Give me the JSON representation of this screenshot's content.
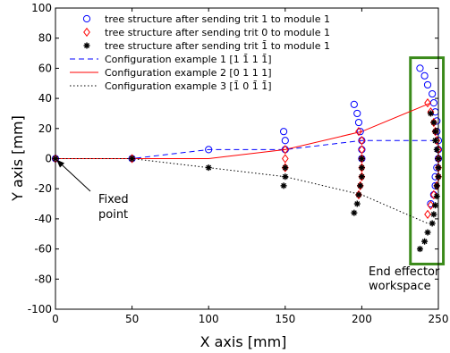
{
  "chart_data": {
    "type": "scatter",
    "xlabel": "X axis [mm]",
    "ylabel": "Y axis [mm]",
    "xlim": [
      0,
      250
    ],
    "ylim": [
      -100,
      100
    ],
    "xticks": [
      "0",
      "50",
      "100",
      "150",
      "200",
      "250"
    ],
    "yticks": [
      "100",
      "80",
      "60",
      "40",
      "20",
      "0",
      "-20",
      "-40",
      "-60",
      "-80",
      "-100"
    ],
    "grid": false,
    "legend_position": "top-left",
    "series": [
      {
        "name": "tree structure after sending trit 1 to module 1",
        "marker": "circle",
        "color": "#0000ff",
        "points": [
          [
            0,
            0
          ],
          [
            50,
            0
          ],
          [
            100,
            6
          ],
          [
            149,
            18
          ],
          [
            150,
            12
          ],
          [
            150,
            6
          ],
          [
            195,
            36
          ],
          [
            197,
            30
          ],
          [
            198,
            24
          ],
          [
            199,
            18
          ],
          [
            200,
            12
          ],
          [
            200,
            6
          ],
          [
            200,
            0
          ],
          [
            238,
            60
          ],
          [
            241,
            55
          ],
          [
            243,
            49
          ],
          [
            246,
            43
          ],
          [
            247,
            37
          ],
          [
            248,
            31
          ],
          [
            249,
            25
          ],
          [
            249,
            18
          ],
          [
            250,
            12
          ],
          [
            250,
            6
          ],
          [
            250,
            0
          ],
          [
            249,
            -6
          ],
          [
            248,
            -12
          ],
          [
            248,
            -18
          ],
          [
            247,
            -24
          ],
          [
            245,
            -30
          ]
        ]
      },
      {
        "name": "tree structure after sending trit 0 to module 1",
        "marker": "diamond",
        "color": "#ff0000",
        "points": [
          [
            0,
            0
          ],
          [
            50,
            0
          ],
          [
            150,
            6
          ],
          [
            150,
            0
          ],
          [
            150,
            -6
          ],
          [
            198,
            18
          ],
          [
            200,
            12
          ],
          [
            200,
            6
          ],
          [
            200,
            0
          ],
          [
            200,
            -6
          ],
          [
            200,
            -12
          ],
          [
            199,
            -18
          ],
          [
            198,
            -24
          ],
          [
            243,
            37
          ],
          [
            245,
            31
          ],
          [
            247,
            24
          ],
          [
            248,
            18
          ],
          [
            249,
            12
          ],
          [
            250,
            6
          ],
          [
            250,
            0
          ],
          [
            250,
            -6
          ],
          [
            250,
            -12
          ],
          [
            249,
            -18
          ],
          [
            247,
            -24
          ],
          [
            245,
            -31
          ],
          [
            243,
            -37
          ]
        ]
      },
      {
        "name": "tree structure after sending trit 1̄ to module 1",
        "marker": "star",
        "color": "#000000",
        "points": [
          [
            0,
            0
          ],
          [
            50,
            0
          ],
          [
            100,
            -6
          ],
          [
            149,
            -18
          ],
          [
            150,
            -12
          ],
          [
            150,
            -6
          ],
          [
            195,
            -36
          ],
          [
            197,
            -30
          ],
          [
            198,
            -24
          ],
          [
            199,
            -18
          ],
          [
            200,
            -12
          ],
          [
            200,
            -6
          ],
          [
            200,
            0
          ],
          [
            238,
            -60
          ],
          [
            241,
            -55
          ],
          [
            243,
            -49
          ],
          [
            246,
            -43
          ],
          [
            247,
            -37
          ],
          [
            248,
            -31
          ],
          [
            249,
            -25
          ],
          [
            249,
            -18
          ],
          [
            250,
            -12
          ],
          [
            250,
            -6
          ],
          [
            250,
            0
          ],
          [
            249,
            6
          ],
          [
            248,
            12
          ],
          [
            248,
            18
          ],
          [
            247,
            24
          ],
          [
            245,
            30
          ]
        ]
      }
    ],
    "lines": [
      {
        "name": "Configuration example 1 [1 1̄ 1 1̄]",
        "style": "dashed",
        "color": "#0000ff",
        "points": [
          [
            0,
            0
          ],
          [
            50,
            0
          ],
          [
            100,
            6
          ],
          [
            150,
            6
          ],
          [
            200,
            12
          ],
          [
            250,
            12
          ]
        ]
      },
      {
        "name": "Configuration example 2 [0 1 1 1]",
        "style": "solid",
        "color": "#ff0000",
        "points": [
          [
            0,
            0
          ],
          [
            50,
            0
          ],
          [
            100,
            0
          ],
          [
            150,
            6
          ],
          [
            200,
            18
          ],
          [
            245,
            37
          ]
        ]
      },
      {
        "name": "Configuration example 3 [1̄ 0 1̄ 1̄]",
        "style": "dotted",
        "color": "#000000",
        "points": [
          [
            0,
            0
          ],
          [
            50,
            0
          ],
          [
            100,
            -6
          ],
          [
            150,
            -12
          ],
          [
            200,
            -24
          ],
          [
            243,
            -43
          ]
        ]
      }
    ],
    "annotations": [
      {
        "text": "Fixed\npoint",
        "target": [
          0,
          0
        ]
      },
      {
        "text": "End effector\nworkspace"
      }
    ],
    "highlight_box": {
      "x": [
        230,
        255
      ],
      "y": [
        -70,
        67
      ],
      "color": "#3a8a1a"
    }
  }
}
